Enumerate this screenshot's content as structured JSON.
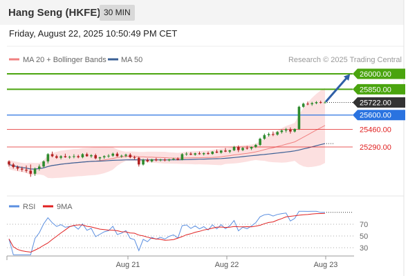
{
  "header": {
    "instrument": "Hang Seng (HKFE)",
    "timeframe": "30 MIN",
    "timestamp": "Friday, August 22, 2025 10:50:49 PM CET"
  },
  "legend": {
    "bollinger": "MA 20 + Bollinger Bands",
    "ma50": "MA 50",
    "credit": "Research © 2025 Trading Central"
  },
  "levels": [
    {
      "value": 26000,
      "label": "26000.00",
      "style": "resistance",
      "color": "#4aa40e"
    },
    {
      "value": 25850,
      "label": "25850.00",
      "style": "resistance",
      "color": "#4aa40e"
    },
    {
      "value": 25722,
      "label": "25722.00",
      "style": "last",
      "color": "#333333"
    },
    {
      "value": 25600,
      "label": "25600.00",
      "style": "pivot",
      "color": "#2a73e0"
    },
    {
      "value": 25460,
      "label": "25460.00",
      "style": "support",
      "color": "#e02020"
    },
    {
      "value": 25290,
      "label": "25290.00",
      "style": "support",
      "color": "#e02020"
    }
  ],
  "rsi_legend": {
    "rsi": "RSI",
    "ma": "9MA"
  },
  "rsi_ticks": [
    "70",
    "50",
    "30"
  ],
  "x_ticks": [
    "Aug 21",
    "Aug 22",
    "Aug 23"
  ],
  "colors": {
    "up": "#2e8b2e",
    "down": "#b22222",
    "band": "#f9c6c6",
    "ma20": "#f08080",
    "ma50": "#3a5f95",
    "rsi": "#5b8fe0",
    "rsi_ma": "#e02020",
    "arrow": "#2f5fa6"
  },
  "chart_data": {
    "type": "candlestick",
    "price_range": [
      24980,
      26050
    ],
    "rsi_range": [
      0,
      100
    ],
    "candles": [
      [
        25150,
        25160,
        25100,
        25120
      ],
      [
        25120,
        25135,
        25080,
        25095
      ],
      [
        25095,
        25110,
        25060,
        25080
      ],
      [
        25080,
        25100,
        25050,
        25070
      ],
      [
        25070,
        25110,
        25040,
        25060
      ],
      [
        25060,
        25120,
        25000,
        25030
      ],
      [
        25030,
        25090,
        25010,
        25080
      ],
      [
        25080,
        25120,
        25060,
        25100
      ],
      [
        25100,
        25160,
        25090,
        25150
      ],
      [
        25150,
        25230,
        25130,
        25220
      ],
      [
        25220,
        25245,
        25190,
        25200
      ],
      [
        25200,
        25215,
        25175,
        25185
      ],
      [
        25185,
        25210,
        25170,
        25200
      ],
      [
        25200,
        25225,
        25185,
        25190
      ],
      [
        25190,
        25205,
        25175,
        25195
      ],
      [
        25195,
        25220,
        25180,
        25200
      ],
      [
        25200,
        25215,
        25180,
        25190
      ],
      [
        25190,
        25230,
        25180,
        25220
      ],
      [
        25220,
        25235,
        25195,
        25200
      ],
      [
        25200,
        25220,
        25185,
        25210
      ],
      [
        25210,
        25225,
        25170,
        25180
      ],
      [
        25180,
        25195,
        25160,
        25190
      ],
      [
        25190,
        25210,
        25175,
        25200
      ],
      [
        25200,
        25220,
        25185,
        25205
      ],
      [
        25205,
        25235,
        25195,
        25225
      ],
      [
        25225,
        25240,
        25195,
        25200
      ],
      [
        25200,
        25215,
        25185,
        25205
      ],
      [
        25205,
        25225,
        25190,
        25215
      ],
      [
        25215,
        25230,
        25180,
        25190
      ],
      [
        25190,
        25205,
        25170,
        25185
      ],
      [
        25185,
        25195,
        25100,
        25120
      ],
      [
        25120,
        25175,
        25110,
        25165
      ],
      [
        25165,
        25180,
        25140,
        25150
      ],
      [
        25150,
        25175,
        25140,
        25170
      ],
      [
        25170,
        25185,
        25150,
        25160
      ],
      [
        25160,
        25175,
        25150,
        25168
      ],
      [
        25168,
        25180,
        25150,
        25160
      ],
      [
        25160,
        25175,
        25150,
        25170
      ],
      [
        25170,
        25185,
        25160,
        25175
      ],
      [
        25175,
        25190,
        25160,
        25165
      ],
      [
        25165,
        25230,
        25160,
        25220
      ],
      [
        25220,
        25240,
        25205,
        25225
      ],
      [
        25225,
        25240,
        25210,
        25215
      ],
      [
        25215,
        25235,
        25205,
        25228
      ],
      [
        25228,
        25245,
        25215,
        25220
      ],
      [
        25220,
        25238,
        25208,
        25230
      ],
      [
        25230,
        25245,
        25215,
        25222
      ],
      [
        25222,
        25250,
        25215,
        25245
      ],
      [
        25245,
        25265,
        25230,
        25235
      ],
      [
        25235,
        25260,
        25225,
        25255
      ],
      [
        25255,
        25280,
        25240,
        25245
      ],
      [
        25245,
        25262,
        25230,
        25258
      ],
      [
        25258,
        25300,
        25250,
        25290
      ],
      [
        25290,
        25305,
        25240,
        25260
      ],
      [
        25260,
        25290,
        25250,
        25280
      ],
      [
        25280,
        25300,
        25265,
        25275
      ],
      [
        25275,
        25295,
        25260,
        25290
      ],
      [
        25290,
        25320,
        25280,
        25310
      ],
      [
        25310,
        25380,
        25300,
        25370
      ],
      [
        25370,
        25420,
        25360,
        25405
      ],
      [
        25405,
        25430,
        25390,
        25415
      ],
      [
        25415,
        25440,
        25395,
        25410
      ],
      [
        25410,
        25445,
        25400,
        25435
      ],
      [
        25435,
        25460,
        25420,
        25450
      ],
      [
        25450,
        25475,
        25430,
        25460
      ],
      [
        25460,
        25480,
        25420,
        25440
      ],
      [
        25440,
        25470,
        25430,
        25465
      ],
      [
        25465,
        25690,
        25455,
        25680
      ],
      [
        25680,
        25720,
        25670,
        25710
      ],
      [
        25710,
        25730,
        25695,
        25705
      ],
      [
        25705,
        25728,
        25690,
        25715
      ],
      [
        25715,
        25735,
        25705,
        25725
      ],
      [
        25725,
        25740,
        25710,
        25720
      ],
      [
        25720,
        25735,
        25715,
        25722
      ]
    ],
    "forecast_arrow": {
      "from": 25722,
      "to": 26000
    }
  }
}
